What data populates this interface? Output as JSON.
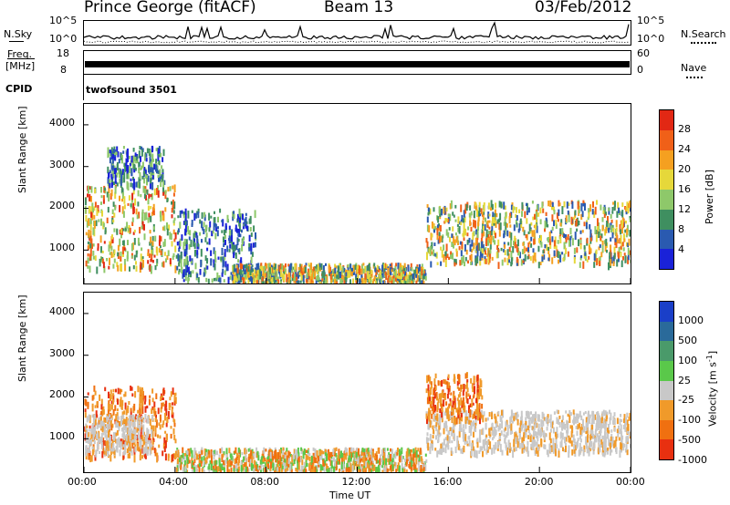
{
  "header": {
    "station": "Prince George (fitACF)",
    "beam": "Beam 13",
    "date": "03/Feb/2012"
  },
  "nsky_panel": {
    "left_label": "N.Sky",
    "right_label": "N.Search",
    "left_ticks": [
      "10^5",
      "10^0"
    ],
    "right_ticks": [
      "10^5",
      "10^0"
    ]
  },
  "freq_panel": {
    "left_label_1": "Freq.",
    "left_label_2": "[MHz]",
    "right_label": "Nave",
    "left_ticks": [
      "18",
      "8"
    ],
    "right_ticks": [
      "60",
      "0"
    ]
  },
  "cpid_panel": {
    "label": "CPID",
    "program": "twofsound 3501"
  },
  "chart_data": [
    {
      "type": "heatmap",
      "name": "power",
      "ylabel": "Slant Range [km]",
      "yticks": [
        "1000",
        "2000",
        "3000",
        "4000"
      ],
      "ylim": [
        200,
        4500
      ],
      "colorbar_label": "Power [dB]",
      "colorbar_ticks": [
        "4",
        "8",
        "12",
        "16",
        "20",
        "24",
        "28"
      ],
      "colors": [
        "#1a22d8",
        "#2a5ab0",
        "#3f8f60",
        "#8ec86a",
        "#e6d83a",
        "#f5a020",
        "#f06018",
        "#e22814"
      ],
      "regions": [
        {
          "t": [
            0.0,
            4.0
          ],
          "range": [
            600,
            2600
          ],
          "level": "high"
        },
        {
          "t": [
            1.0,
            3.5
          ],
          "range": [
            2600,
            3500
          ],
          "level": "low"
        },
        {
          "t": [
            4.0,
            7.5
          ],
          "range": [
            300,
            2000
          ],
          "level": "low"
        },
        {
          "t": [
            6.5,
            15.0
          ],
          "range": [
            250,
            700
          ],
          "level": "mid"
        },
        {
          "t": [
            15.0,
            24.0
          ],
          "range": [
            700,
            2200
          ],
          "level": "mid"
        }
      ]
    },
    {
      "type": "heatmap",
      "name": "velocity",
      "ylabel": "Slant Range [km]",
      "yticks": [
        "1000",
        "2000",
        "3000",
        "4000"
      ],
      "ylim": [
        200,
        4500
      ],
      "colorbar_label": "Velocity [m s^-1]",
      "colorbar_ticks": [
        "1000",
        "500",
        "100",
        "25",
        "-25",
        "-100",
        "-500",
        "-1000"
      ],
      "colors": [
        "#1a3fc8",
        "#2a6a9a",
        "#4a9a6a",
        "#5ac84a",
        "#c8c8c8",
        "#f09a2a",
        "#f07010",
        "#e83010"
      ],
      "regions": [
        {
          "t": [
            0.0,
            4.0
          ],
          "range": [
            600,
            2300
          ],
          "level": "negative"
        },
        {
          "t": [
            0.0,
            3.0
          ],
          "range": [
            700,
            1600
          ],
          "level": "near-zero"
        },
        {
          "t": [
            4.0,
            15.0
          ],
          "range": [
            250,
            800
          ],
          "level": "mixed"
        },
        {
          "t": [
            15.0,
            24.0
          ],
          "range": [
            700,
            1700
          ],
          "level": "near-zero"
        },
        {
          "t": [
            15.0,
            17.5
          ],
          "range": [
            1500,
            2600
          ],
          "level": "negative"
        }
      ]
    }
  ],
  "xaxis": {
    "ticks": [
      "00:00",
      "04:00",
      "08:00",
      "12:00",
      "16:00",
      "20:00",
      "00:00"
    ],
    "label": "Time UT"
  }
}
